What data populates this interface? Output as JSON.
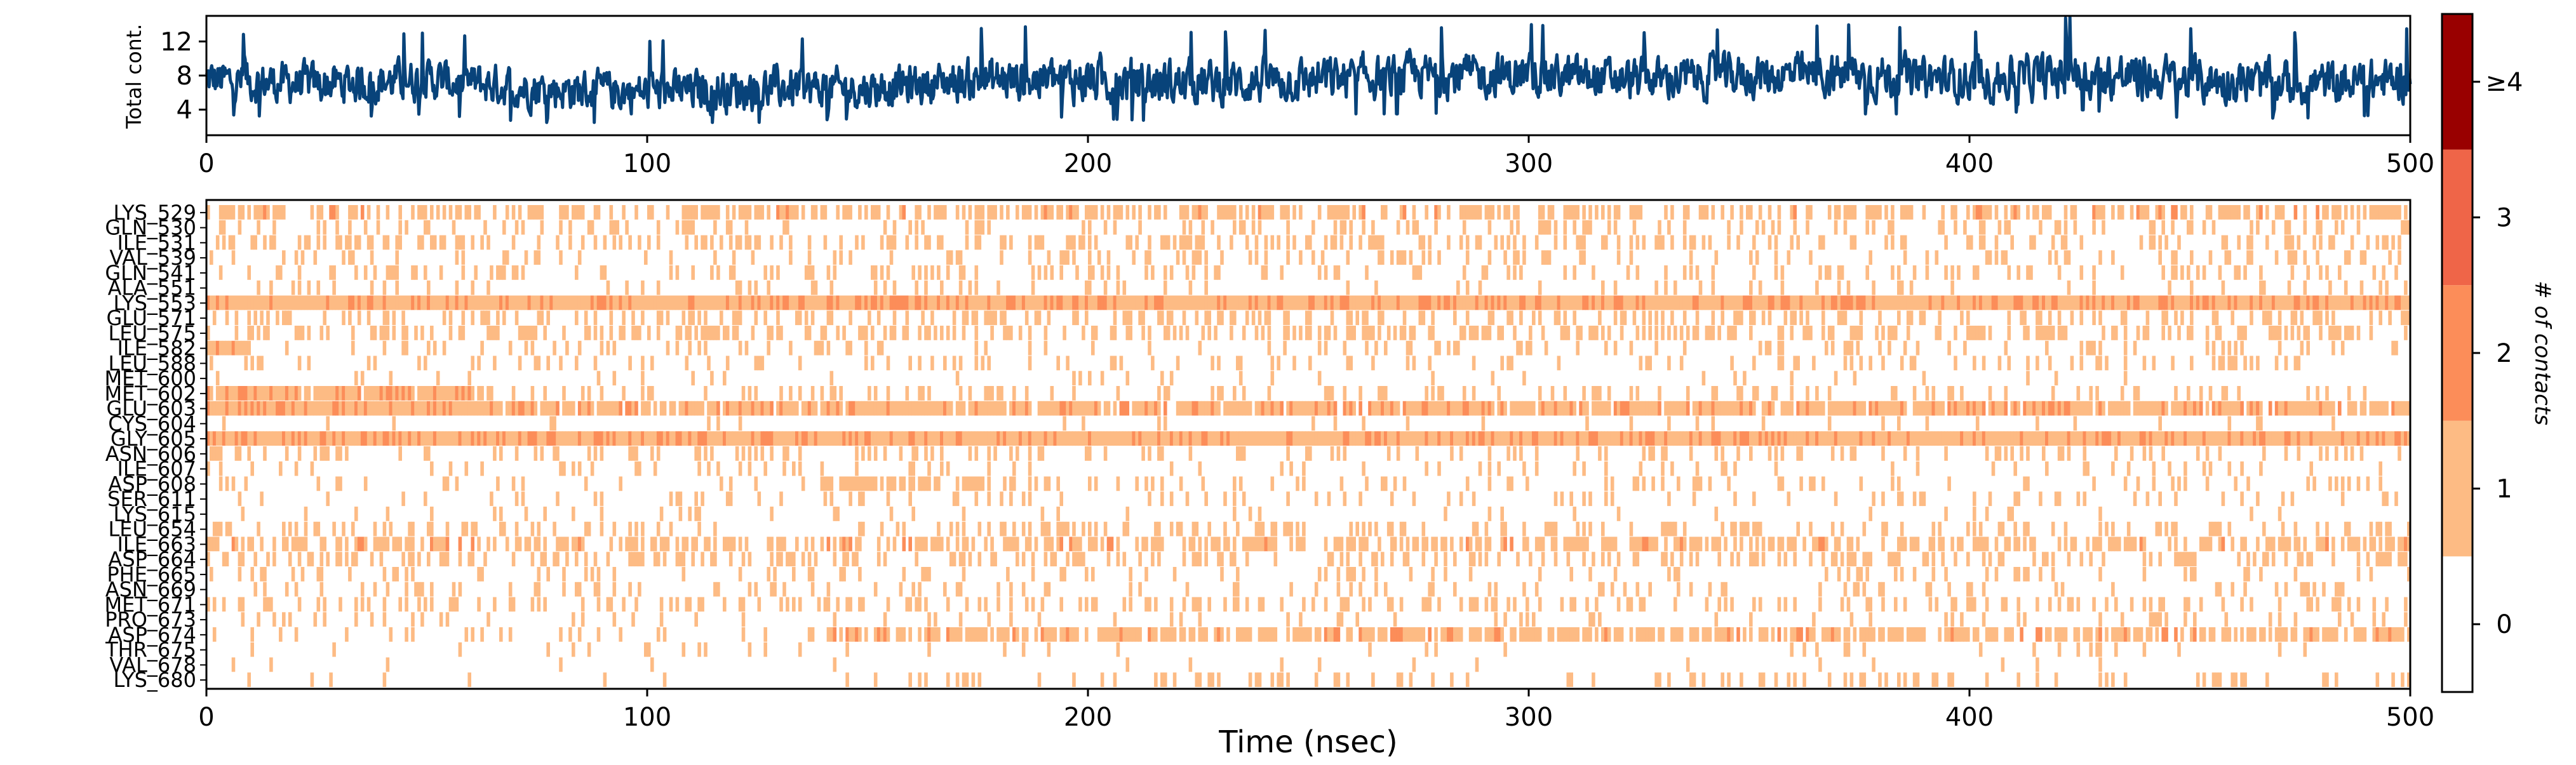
{
  "chart_data": [
    {
      "type": "line",
      "title": "",
      "xlabel": "",
      "ylabel": "Total cont.",
      "xlim": [
        0,
        500
      ],
      "ylim": [
        1,
        15
      ],
      "yticks": [
        "4",
        "8",
        "12"
      ],
      "xticks": [
        "0",
        "100",
        "200",
        "300",
        "400",
        "500"
      ],
      "color": "#08437a",
      "series": [
        {
          "x": [
            0,
            25,
            50,
            75,
            100,
            125,
            150,
            175,
            200,
            225,
            250,
            275,
            300,
            325,
            350,
            375,
            400,
            425,
            450,
            475,
            500
          ],
          "y": [
            7.5,
            7.0,
            7.5,
            6.5,
            6.0,
            6.5,
            6.5,
            7.5,
            7.5,
            7.0,
            7.5,
            8.0,
            8.0,
            7.5,
            8.0,
            8.0,
            7.5,
            8.0,
            7.5,
            7.0,
            7.5
          ],
          "min": [
            3.5,
            3,
            3.5,
            2.5,
            2.5,
            2.5,
            3,
            3.5,
            3,
            2.5,
            3.5,
            3.5,
            4,
            3.5,
            3.5,
            3.5,
            3.5,
            4,
            3,
            3,
            3.5
          ],
          "max": [
            13,
            12.5,
            13,
            12,
            12,
            12.5,
            12,
            13.5,
            14,
            13,
            13.5,
            13.5,
            14,
            13,
            13.5,
            14,
            13,
            15,
            13.5,
            13,
            13.5
          ]
        }
      ]
    },
    {
      "type": "heatmap",
      "title": "",
      "xlabel": "Time (nsec)",
      "ylabel": "",
      "xlim": [
        0,
        500
      ],
      "xticks": [
        "0",
        "100",
        "200",
        "300",
        "400",
        "500"
      ],
      "residues": [
        "LYS_529",
        "GLN_530",
        "ILE_531",
        "VAL_539",
        "GLN_541",
        "ALA_551",
        "LYS_553",
        "GLU_571",
        "LEU_575",
        "ILE_582",
        "LEU_588",
        "MET_600",
        "MET_602",
        "GLU_603",
        "CYS_604",
        "GLY_605",
        "ASN_606",
        "ILE_607",
        "ASP_608",
        "SER_611",
        "LYS_615",
        "LEU_654",
        "ILE_663",
        "ASP_664",
        "PHE_665",
        "ASN_669",
        "MET_671",
        "PRO_673",
        "ASP_674",
        "THR_675",
        "VAL_678",
        "LYS_680"
      ],
      "rows": [
        [
          [
            0,
            500,
            0.5
          ]
        ],
        [
          [
            0,
            500,
            0.2
          ]
        ],
        [
          [
            0,
            500,
            0.35
          ]
        ],
        [
          [
            0,
            500,
            0.2
          ]
        ],
        [
          [
            0,
            500,
            0.2
          ]
        ],
        [
          [
            0,
            500,
            0.1
          ]
        ],
        [
          [
            0,
            500,
            1.0
          ]
        ],
        [
          [
            0,
            500,
            0.3
          ]
        ],
        [
          [
            0,
            500,
            0.4
          ]
        ],
        [
          [
            0,
            10,
            0.7
          ],
          [
            10,
            500,
            0.15
          ]
        ],
        [
          [
            0,
            500,
            0.15
          ]
        ],
        [
          [
            0,
            500,
            0.05
          ]
        ],
        [
          [
            0,
            65,
            0.9
          ],
          [
            65,
            500,
            0.2
          ]
        ],
        [
          [
            0,
            65,
            1.0
          ],
          [
            65,
            500,
            0.85
          ]
        ],
        [
          [
            0,
            500,
            0.05
          ]
        ],
        [
          [
            0,
            500,
            1.0
          ]
        ],
        [
          [
            0,
            500,
            0.2
          ]
        ],
        [
          [
            0,
            500,
            0.1
          ]
        ],
        [
          [
            0,
            140,
            0.15
          ],
          [
            140,
            185,
            0.45
          ],
          [
            185,
            500,
            0.15
          ]
        ],
        [
          [
            0,
            500,
            0.15
          ]
        ],
        [
          [
            0,
            500,
            0.05
          ]
        ],
        [
          [
            0,
            500,
            0.25
          ]
        ],
        [
          [
            0,
            500,
            0.55
          ]
        ],
        [
          [
            0,
            500,
            0.3
          ]
        ],
        [
          [
            0,
            500,
            0.15
          ]
        ],
        [
          [
            0,
            500,
            0.15
          ]
        ],
        [
          [
            0,
            500,
            0.25
          ]
        ],
        [
          [
            0,
            500,
            0.1
          ]
        ],
        [
          [
            0,
            140,
            0.1
          ],
          [
            140,
            500,
            0.7
          ]
        ],
        [
          [
            0,
            500,
            0.05
          ]
        ],
        [
          [
            0,
            500,
            0.02
          ]
        ],
        [
          [
            0,
            140,
            0.02
          ],
          [
            140,
            500,
            0.2
          ]
        ]
      ],
      "colorbar": {
        "label": "# of contacts",
        "levels": [
          "0",
          "1",
          "2",
          "3",
          "≥4"
        ],
        "colors": [
          "#ffffff",
          "#fdbb84",
          "#fc8d59",
          "#ef6548",
          "#990000"
        ]
      }
    }
  ]
}
